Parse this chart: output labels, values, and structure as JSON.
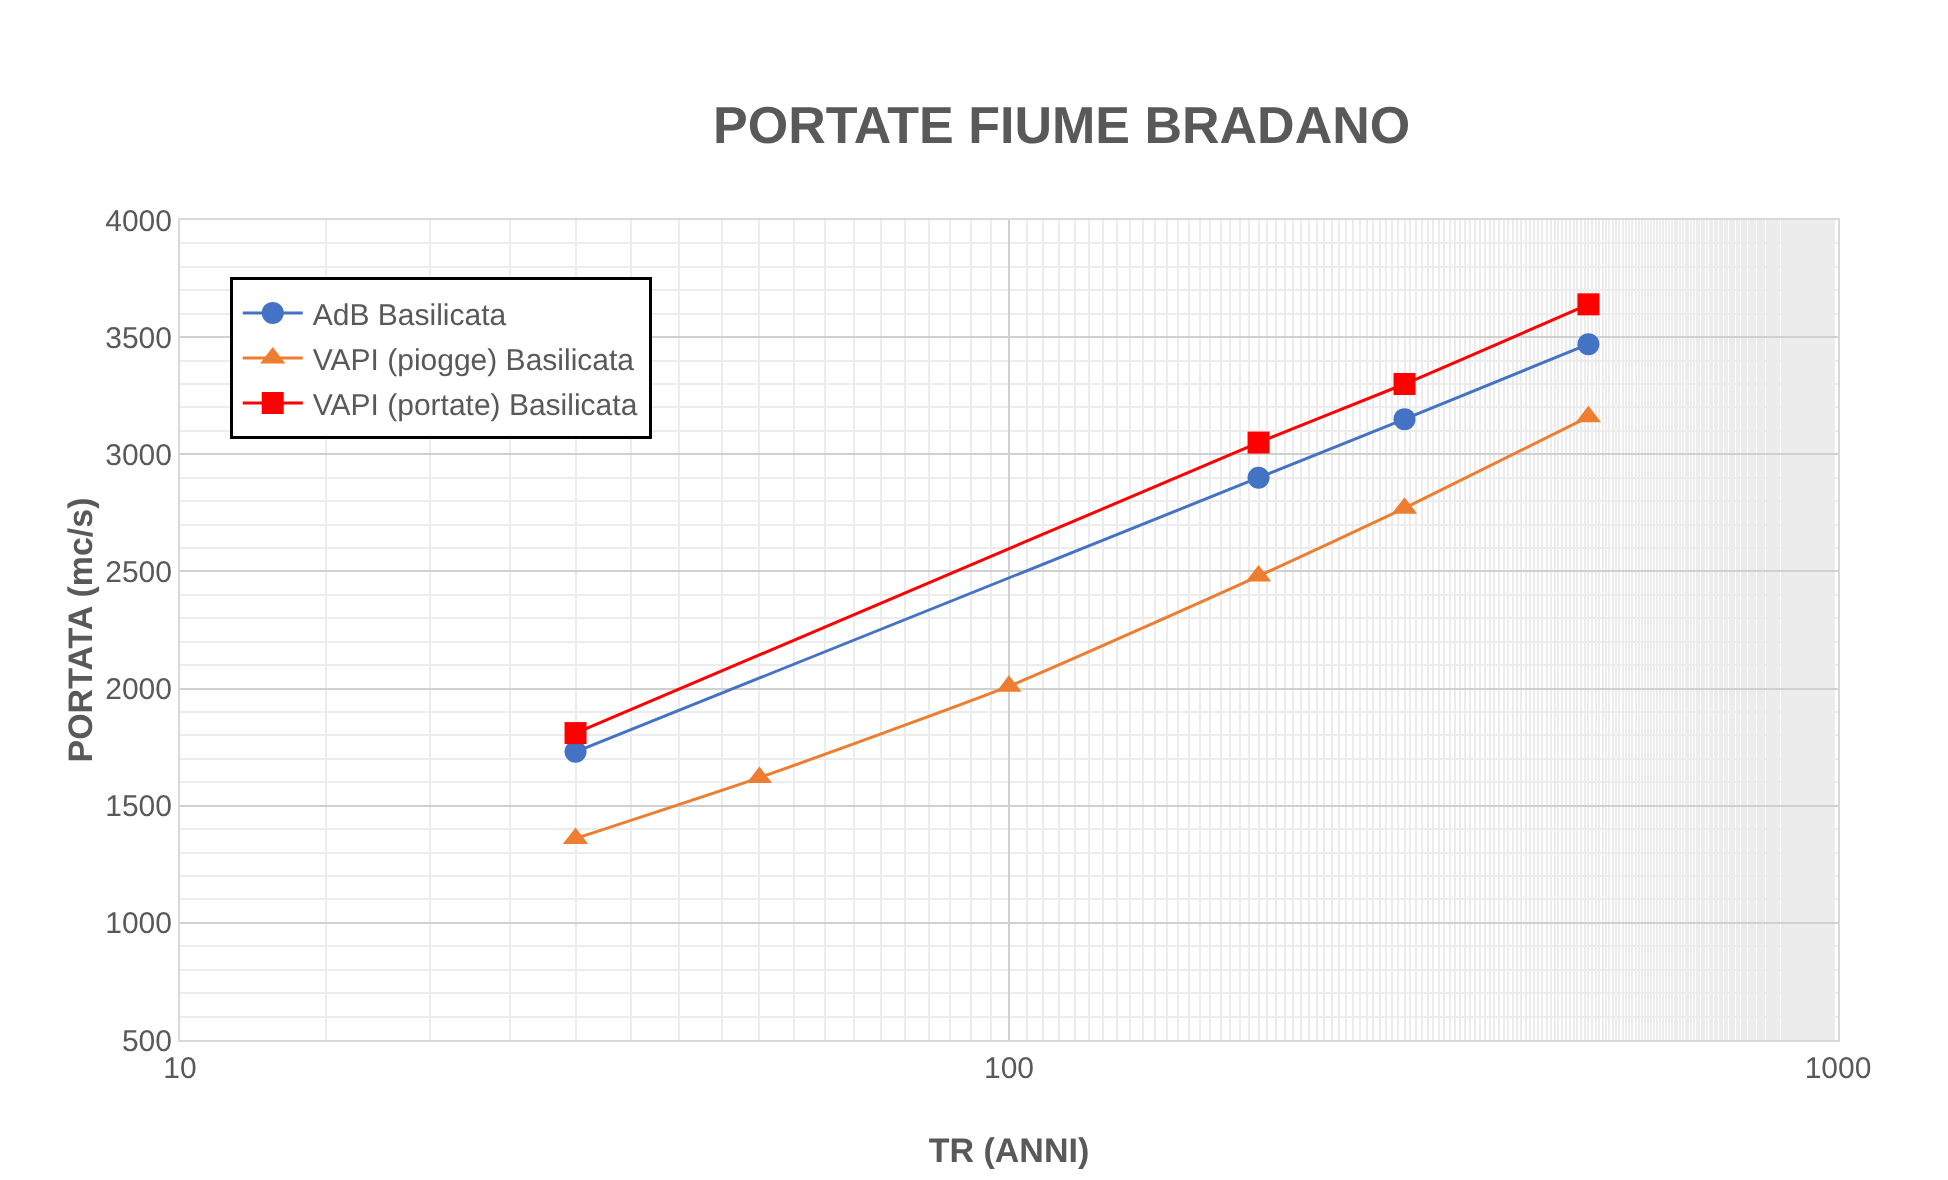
{
  "chart_data": {
    "type": "line",
    "title": "PORTATE FIUME BRADANO",
    "xlabel": "TR (ANNI)",
    "ylabel": "PORTATA (mc/s)",
    "log": "x",
    "xlim": [
      10,
      1000
    ],
    "xticks": [
      10,
      100,
      1000
    ],
    "ylim": [
      500,
      4000
    ],
    "yticks": [
      500,
      1000,
      1500,
      2000,
      2500,
      3000,
      3500,
      4000
    ],
    "grid": true,
    "legend": "top left",
    "series": [
      {
        "name": "AdB Basilicata",
        "color": "#4472c4",
        "marker": "circle",
        "x": [
          30,
          200,
          300,
          500
        ],
        "values": [
          1730,
          2900,
          3150,
          3470
        ]
      },
      {
        "name": "VAPI (piogge) Basilicata",
        "color": "#ed7d31",
        "marker": "triangle",
        "x": [
          30,
          50,
          100,
          200,
          300,
          500
        ],
        "values": [
          1360,
          1620,
          2010,
          2480,
          2770,
          3160
        ]
      },
      {
        "name": "VAPI (portate) Basilicata",
        "color": "#ff0000",
        "marker": "square",
        "x": [
          30,
          200,
          300,
          500
        ],
        "values": [
          1810,
          3050,
          3300,
          3640
        ]
      }
    ]
  }
}
